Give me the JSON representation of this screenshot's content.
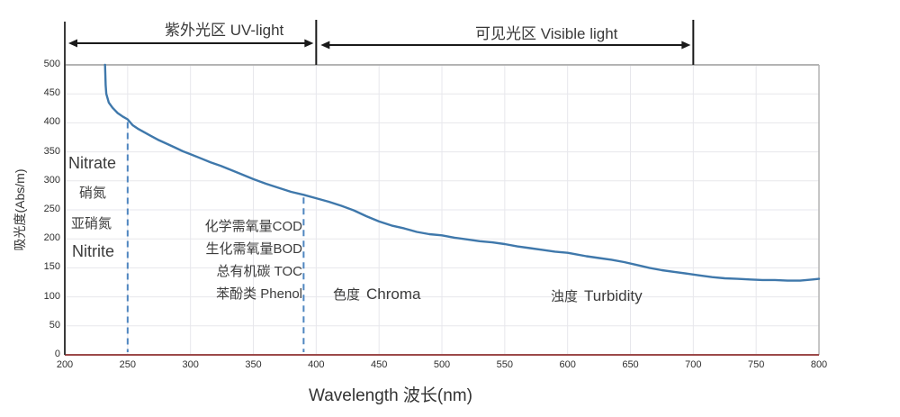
{
  "regions": {
    "uv": {
      "label": "紫外光区 UV-light",
      "from_nm": 200,
      "to_nm": 400
    },
    "visible": {
      "label": "可见光区 Visible light",
      "from_nm": 400,
      "to_nm": 700
    }
  },
  "axes": {
    "x": {
      "label": "Wavelength 波长(nm)",
      "min": 200,
      "max": 800,
      "ticks": [
        200,
        250,
        300,
        350,
        400,
        450,
        500,
        550,
        600,
        650,
        700,
        750,
        800
      ]
    },
    "y": {
      "label": "吸光度(Abs/m)",
      "min": 0,
      "max": 500,
      "ticks": [
        0,
        50,
        100,
        150,
        200,
        250,
        300,
        350,
        400,
        450,
        500
      ]
    }
  },
  "annotations": {
    "nitrate_en": "Nitrate",
    "nitrate_zh": "硝氮",
    "nitrite_zh": "亚硝氮",
    "nitrite_en": "Nitrite",
    "cod": "化学需氧量COD",
    "bod": "生化需氧量BOD",
    "toc": "总有机碳 TOC",
    "phenol": "苯酚类 Phenol",
    "chroma_zh": "色度",
    "chroma_en": "Chroma",
    "turbidity_zh": "浊度",
    "turbidity_en": "Turbidity"
  },
  "colors": {
    "curve": "#3f78ab",
    "dashed_guide": "#4f86c0",
    "baseline_red": "#9c4a4a",
    "axis_dark": "#3b3b3b",
    "arrow_black": "#1a1a1a",
    "border_gray": "#b4b4b4",
    "grid": "#e7e7ec"
  },
  "chart_data": {
    "type": "line",
    "title": "",
    "xlabel": "Wavelength 波长(nm)",
    "ylabel": "吸光度(Abs/m)",
    "xlim": [
      200,
      800
    ],
    "ylim": [
      0,
      500
    ],
    "grid": true,
    "legend": false,
    "dashed_guides_nm": [
      250,
      390
    ],
    "region_boundaries_nm": [
      400,
      700
    ],
    "series": [
      {
        "name": "absorbance-spectrum",
        "x": [
          232,
          232.5,
          233,
          235,
          238,
          242,
          246,
          250,
          254,
          258,
          263,
          268,
          274,
          280,
          287,
          294,
          300,
          308,
          316,
          324,
          332,
          340,
          350,
          360,
          370,
          380,
          390,
          400,
          410,
          420,
          430,
          440,
          450,
          460,
          470,
          480,
          490,
          500,
          510,
          520,
          530,
          540,
          550,
          560,
          570,
          580,
          590,
          600,
          605,
          615,
          625,
          635,
          645,
          655,
          665,
          675,
          685,
          695,
          705,
          715,
          725,
          735,
          745,
          755,
          765,
          775,
          785,
          795,
          800
        ],
        "y": [
          500,
          465,
          450,
          435,
          426,
          417,
          411,
          406,
          396,
          390,
          384,
          378,
          371,
          365,
          358,
          351,
          346,
          339,
          332,
          326,
          319,
          312,
          303,
          295,
          288,
          281,
          276,
          270,
          264,
          257,
          249,
          239,
          230,
          223,
          218,
          212,
          208,
          206,
          202,
          199,
          196,
          194,
          191,
          187,
          184,
          181,
          178,
          176,
          174,
          170,
          167,
          164,
          160,
          155,
          150,
          146,
          143,
          140,
          137,
          134,
          132,
          131,
          130,
          129,
          129,
          128,
          128,
          130,
          131
        ]
      }
    ]
  }
}
